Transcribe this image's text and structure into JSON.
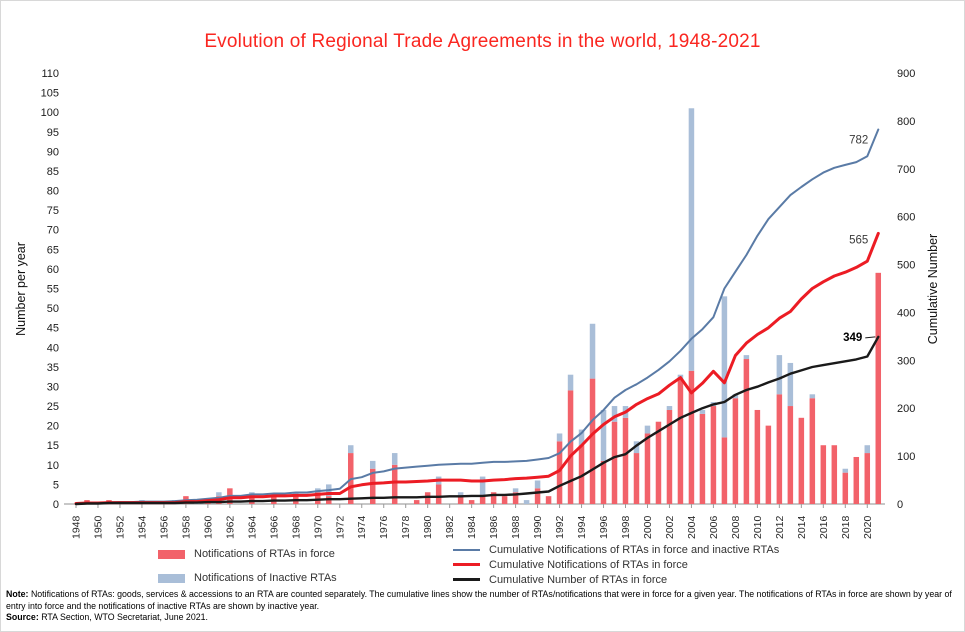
{
  "title": "Evolution of Regional Trade Agreements in the world, 1948-2021",
  "colors": {
    "title_red": "#fa2620",
    "bar_red": "#f2626a",
    "bar_blue": "#a9bed8",
    "line_blue": "#5a7ba6",
    "line_red": "#ec1c24",
    "line_black": "#1a1a1a",
    "axis_text": "#1c1c1c"
  },
  "chart_data": {
    "type": "combo",
    "title": "Evolution of Regional Trade Agreements in the world, 1948-2021",
    "start_year": 1948,
    "end_year": 2021,
    "x_tick_labels": [
      "1948",
      "1950",
      "1952",
      "1954",
      "1956",
      "1958",
      "1960",
      "1962",
      "1964",
      "1966",
      "1968",
      "1970",
      "1972",
      "1974",
      "1976",
      "1978",
      "1980",
      "1982",
      "1984",
      "1986",
      "1988",
      "1990",
      "1992",
      "1994",
      "1996",
      "1998",
      "2000",
      "2002",
      "2004",
      "2006",
      "2008",
      "2010",
      "2012",
      "2014",
      "2016",
      "2018",
      "2020"
    ],
    "left_axis": {
      "label": "Number per year",
      "min": 0,
      "max": 110,
      "step": 5
    },
    "right_axis": {
      "label": "Cumulative Number",
      "min": 0,
      "max": 900,
      "step": 100
    },
    "bar_series": [
      {
        "id": "notifications-rtas-in-force",
        "name": "Notifications of RTAs in force",
        "type": "bar",
        "stack": "notifications",
        "axis": "left",
        "color": "#f2626a",
        "values": [
          0,
          1,
          0,
          1,
          0,
          0,
          0,
          0,
          0,
          0,
          2,
          0,
          1,
          2,
          4,
          0,
          2,
          0,
          2,
          0,
          2,
          0,
          3,
          2,
          0,
          13,
          0,
          9,
          0,
          10,
          0,
          1,
          3,
          5,
          0,
          2,
          1,
          2,
          3,
          2,
          3,
          0,
          4,
          2,
          16,
          29,
          15,
          32,
          11,
          21,
          22,
          13,
          18,
          21,
          24,
          32,
          34,
          23,
          25,
          17,
          27,
          37,
          24,
          20,
          28,
          25,
          22,
          27,
          15,
          15,
          8,
          12,
          13,
          59
        ]
      },
      {
        "id": "notifications-inactive-rtas",
        "name": "Notifications of Inactive RTAs",
        "type": "bar",
        "stack": "notifications",
        "axis": "left",
        "color": "#a9bed8",
        "values": [
          0,
          0,
          0,
          0,
          0,
          0,
          1,
          0,
          0,
          1,
          0,
          1,
          0,
          1,
          0,
          0,
          1,
          0,
          0,
          0,
          1,
          0,
          1,
          3,
          0,
          2,
          0,
          2,
          0,
          3,
          0,
          0,
          0,
          2,
          0,
          1,
          0,
          5,
          0,
          0,
          1,
          1,
          2,
          0,
          2,
          4,
          4,
          14,
          13,
          4,
          3,
          3,
          2,
          0,
          1,
          1,
          67,
          1,
          1,
          36,
          1,
          1,
          0,
          0,
          10,
          11,
          0,
          1,
          0,
          0,
          1,
          0,
          2,
          0
        ]
      }
    ],
    "line_series": [
      {
        "id": "cumulative-notifications-in-force-and-inactive",
        "name": "Cumulative Notifications of RTAs in force and inactive RTAs",
        "type": "line",
        "axis": "right",
        "color": "#5a7ba6",
        "width": 2,
        "end_label": "782",
        "values": [
          1,
          2,
          3,
          3,
          4,
          4,
          5,
          5,
          5,
          6,
          8,
          9,
          11,
          13,
          17,
          17,
          20,
          20,
          22,
          22,
          24,
          24,
          27,
          29,
          32,
          52,
          56,
          65,
          68,
          74,
          76,
          78,
          80,
          82,
          83,
          84,
          84,
          86,
          88,
          88,
          89,
          90,
          93,
          96,
          106,
          130,
          148,
          175,
          196,
          222,
          238,
          250,
          264,
          280,
          298,
          320,
          345,
          365,
          390,
          450,
          485,
          520,
          560,
          595,
          620,
          645,
          662,
          678,
          692,
          702,
          708,
          714,
          726,
          782
        ]
      },
      {
        "id": "cumulative-notifications-in-force",
        "name": "Cumulative Notifications of RTAs in force",
        "type": "line",
        "axis": "right",
        "color": "#ec1c24",
        "width": 3,
        "end_label": "565",
        "values": [
          1,
          2,
          2,
          3,
          3,
          3,
          3,
          3,
          3,
          3,
          5,
          5,
          7,
          9,
          13,
          13,
          15,
          15,
          17,
          17,
          18,
          18,
          20,
          22,
          22,
          36,
          40,
          43,
          44,
          46,
          46,
          47,
          48,
          50,
          50,
          50,
          48,
          48,
          50,
          51,
          53,
          54,
          56,
          58,
          70,
          100,
          122,
          146,
          166,
          182,
          192,
          208,
          220,
          230,
          248,
          264,
          232,
          252,
          277,
          253,
          310,
          336,
          354,
          368,
          388,
          402,
          428,
          450,
          464,
          476,
          484,
          494,
          507,
          565
        ]
      },
      {
        "id": "cumulative-rtas-in-force",
        "name": "Cumulative Number of RTAs in force",
        "type": "line",
        "axis": "right",
        "color": "#1a1a1a",
        "width": 2.4,
        "end_label": "349",
        "values": [
          0,
          1,
          1,
          2,
          2,
          2,
          2,
          2,
          2,
          2,
          3,
          3,
          4,
          4,
          5,
          5,
          6,
          6,
          7,
          7,
          8,
          8,
          9,
          10,
          10,
          11,
          12,
          13,
          13,
          14,
          14,
          14,
          15,
          15,
          16,
          16,
          17,
          17,
          19,
          19,
          20,
          22,
          24,
          26,
          38,
          48,
          58,
          72,
          86,
          98,
          104,
          122,
          138,
          152,
          166,
          180,
          190,
          200,
          208,
          213,
          228,
          238,
          245,
          254,
          262,
          272,
          279,
          286,
          290,
          294,
          298,
          302,
          308,
          349
        ]
      }
    ]
  },
  "legend": {
    "bars": [
      "Notifications of RTAs in force",
      "Notifications of Inactive RTAs"
    ],
    "lines": [
      "Cumulative Notifications of RTAs in force and inactive RTAs",
      "Cumulative Notifications of RTAs in force",
      "Cumulative Number of RTAs in force"
    ]
  },
  "footer": {
    "note_label": "Note:",
    "note_text": "Notifications of RTAs: goods, services & accessions to an RTA are counted separately. The cumulative lines show the number of RTAs/notifications that were in force for a given year. The notifications of RTAs in force are shown by year of entry into force and the notifications of inactive RTAs are shown by inactive year.",
    "source_label": "Source:",
    "source_text": "RTA Section, WTO Secretariat, June 2021."
  }
}
